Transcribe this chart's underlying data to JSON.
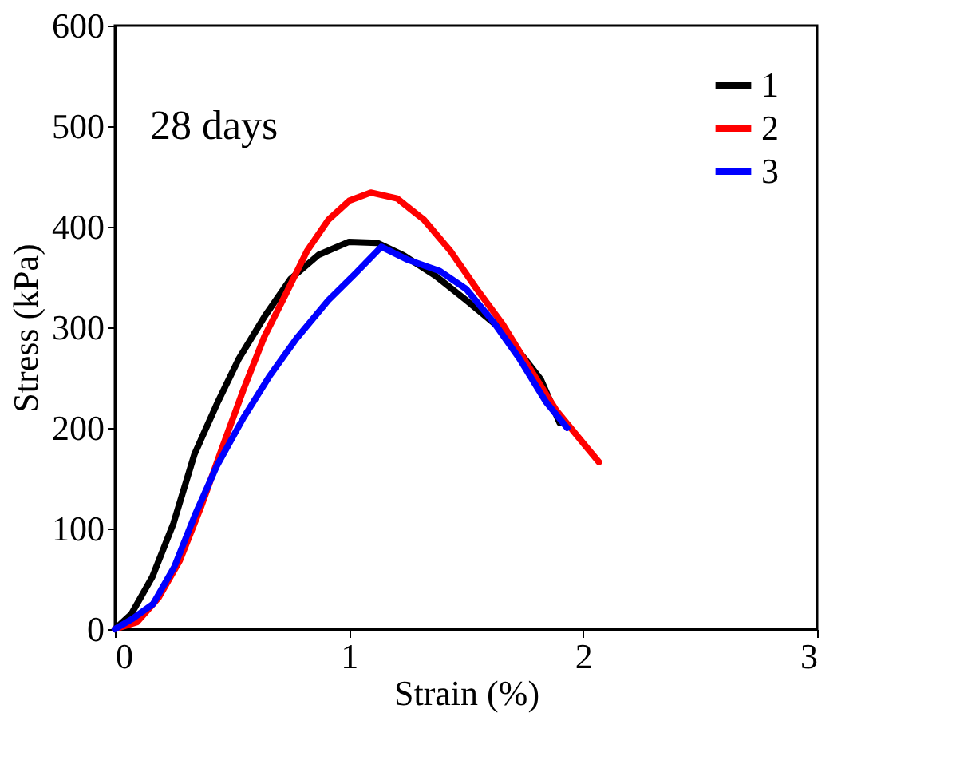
{
  "chart_data": {
    "type": "line",
    "xlabel": "Strain (%)",
    "ylabel": "Stress (kPa)",
    "annotations": [
      "28 days"
    ],
    "xlim": [
      0,
      3
    ],
    "xticks": [
      0,
      1,
      2,
      3
    ],
    "ylim": [
      0,
      600
    ],
    "yticks": [
      0,
      100,
      200,
      300,
      400,
      500,
      600
    ],
    "grid": false,
    "legend": "top right",
    "marker": "none",
    "line_style": "solid",
    "series": [
      {
        "name": "1",
        "color": "#000000",
        "x": [
          0,
          0.07,
          0.16,
          0.25,
          0.34,
          0.44,
          0.53,
          0.64,
          0.75,
          0.87,
          1.0,
          1.12,
          1.23,
          1.37,
          1.5,
          1.64,
          1.75,
          1.82,
          1.9
        ],
        "values": [
          0,
          15,
          52,
          105,
          174,
          226,
          269,
          311,
          348,
          372,
          385,
          384,
          372,
          351,
          327,
          300,
          269,
          248,
          205
        ]
      },
      {
        "name": "2",
        "color": "#ff0000",
        "x": [
          0,
          0.095,
          0.186,
          0.277,
          0.367,
          0.458,
          0.549,
          0.639,
          0.73,
          0.821,
          0.912,
          1.002,
          1.093,
          1.206,
          1.32,
          1.433,
          1.546,
          1.66,
          1.773,
          1.887,
          2.0,
          2.068
        ],
        "values": [
          0,
          7,
          31,
          68,
          121,
          180,
          238,
          291,
          333,
          376,
          407,
          426,
          434,
          428,
          407,
          376,
          338,
          302,
          259,
          217,
          185,
          166
        ]
      },
      {
        "name": "3",
        "color": "#0000ff",
        "x": [
          0,
          0.073,
          0.163,
          0.254,
          0.345,
          0.435,
          0.549,
          0.662,
          0.776,
          0.912,
          1.025,
          1.138,
          1.252,
          1.388,
          1.501,
          1.615,
          1.728,
          1.841,
          1.932
        ],
        "values": [
          0,
          10,
          25,
          62,
          115,
          162,
          210,
          252,
          289,
          327,
          353,
          380,
          367,
          356,
          338,
          306,
          269,
          226,
          200
        ]
      }
    ]
  }
}
